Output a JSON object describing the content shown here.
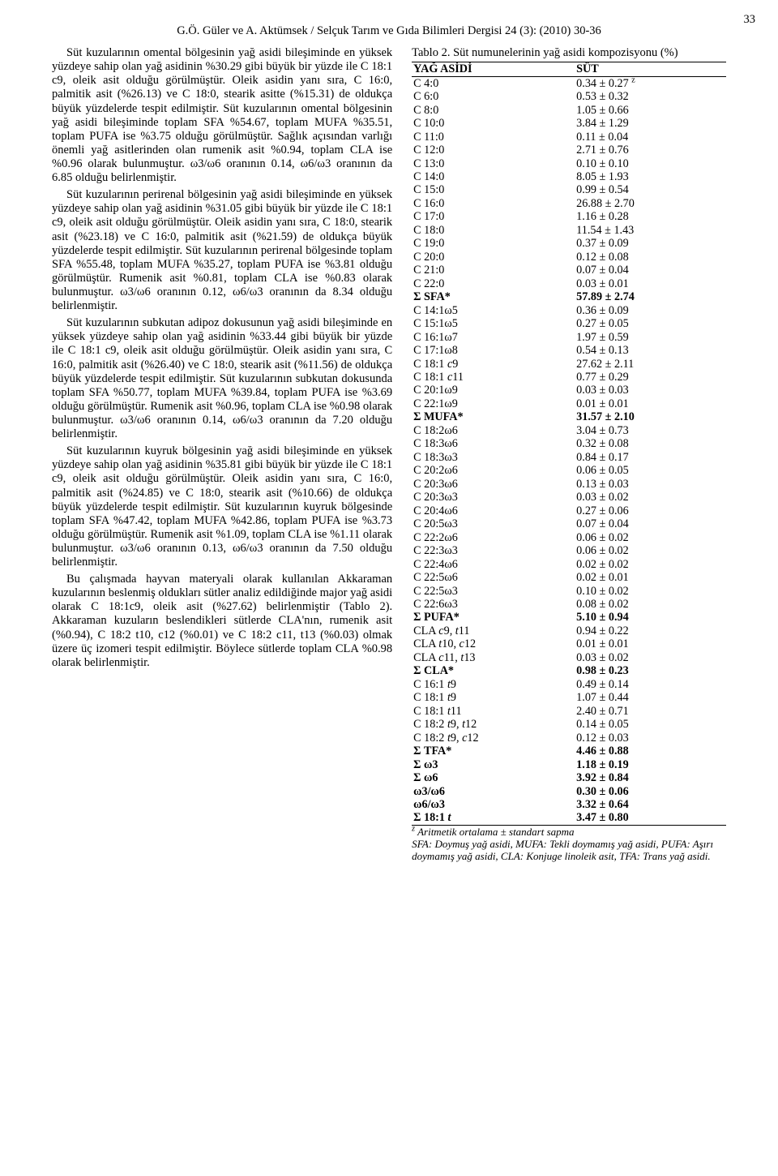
{
  "page_number": "33",
  "header": "G.Ö. Güler ve A. Aktümsek / Selçuk Tarım ve Gıda Bilimleri Dergisi 24 (3): (2010) 30-36",
  "paragraphs": [
    "Süt kuzularının omental bölgesinin yağ asidi bileşiminde en yüksek yüzdeye sahip olan yağ asidinin %30.29 gibi büyük bir yüzde ile C 18:1 c9, oleik asit olduğu görülmüştür. Oleik asidin yanı sıra, C 16:0, palmitik asit (%26.13) ve C 18:0, stearik asitte (%15.31) de oldukça büyük yüzdelerde tespit edilmiştir. Süt kuzularının omental bölgesinin yağ asidi bileşiminde toplam SFA %54.67, toplam MUFA %35.51, toplam PUFA ise %3.75 olduğu görülmüştür. Sağlık açısından varlığı önemli yağ asitlerinden olan rumenik asit %0.94, toplam CLA ise %0.96 olarak bulunmuştur. ω3/ω6 oranının 0.14, ω6/ω3 oranının da 6.85 olduğu belirlenmiştir.",
    "Süt kuzularının perirenal bölgesinin yağ asidi bileşiminde en yüksek yüzdeye sahip olan yağ asidinin %31.05 gibi büyük bir yüzde ile C 18:1 c9, oleik asit olduğu görülmüştür. Oleik asidin yanı sıra, C 18:0, stearik asit (%23.18) ve C 16:0, palmitik asit (%21.59) de oldukça büyük yüzdelerde tespit edilmiştir. Süt kuzularının perirenal bölgesinde toplam SFA %55.48, toplam MUFA %35.27, toplam PUFA ise %3.81 olduğu görülmüştür. Rumenik asit %0.81, toplam CLA ise %0.83 olarak bulunmuştur. ω3/ω6 oranının 0.12, ω6/ω3 oranının da 8.34 olduğu belirlenmiştir.",
    "Süt kuzularının subkutan adipoz dokusunun yağ asidi bileşiminde en yüksek yüzdeye sahip olan yağ asidinin %33.44 gibi büyük bir yüzde ile C 18:1 c9, oleik asit olduğu görülmüştür. Oleik asidin yanı sıra, C 16:0, palmitik asit (%26.40) ve C 18:0, stearik asit (%11.56) de oldukça büyük yüzdelerde tespit edilmiştir. Süt kuzularının subkutan dokusunda toplam SFA %50.77, toplam MUFA %39.84, toplam PUFA ise %3.69 olduğu görülmüştür. Rumenik asit %0.96, toplam CLA ise %0.98 olarak bulunmuştur. ω3/ω6 oranının 0.14, ω6/ω3 oranının da 7.20 olduğu belirlenmiştir.",
    "Süt kuzularının kuyruk bölgesinin yağ asidi bileşiminde en yüksek yüzdeye sahip olan yağ asidinin %35.81 gibi büyük bir yüzde ile C 18:1 c9, oleik asit olduğu görülmüştür. Oleik asidin yanı sıra, C 16:0, palmitik asit (%24.85) ve C 18:0, stearik asit (%10.66) de oldukça büyük yüzdelerde tespit edilmiştir. Süt kuzularının kuyruk bölgesinde toplam SFA %47.42, toplam MUFA %42.86, toplam PUFA ise %3.73 olduğu görülmüştür. Rumenik asit %1.09, toplam CLA ise %1.11 olarak bulunmuştur. ω3/ω6 oranının 0.13, ω6/ω3 oranının da 7.50 olduğu belirlenmiştir.",
    "Bu çalışmada hayvan materyali olarak kullanılan Akkaraman kuzularının beslenmiş oldukları sütler analiz edildiğinde major yağ asidi olarak C 18:1c9, oleik asit (%27.62) belirlenmiştir (Tablo 2). Akkaraman kuzuların beslendikleri sütlerde CLA'nın, rumenik asit (%0.94), C 18:2 t10, c12 (%0.01) ve C 18:2 c11, t13 (%0.03) olmak üzere üç izomeri tespit edilmiştir. Böylece sütlerde toplam CLA %0.98 olarak belirlenmiştir."
  ],
  "table": {
    "title": "Tablo 2. Süt numunelerinin yağ asidi kompozisyonu (%)",
    "header": {
      "col1": "YAĞ ASİDİ",
      "col2": "SÜT"
    },
    "first_row_note": "z",
    "rows": [
      {
        "l": "C 4:0",
        "v": "0.34 ± 0.27",
        "note": true
      },
      {
        "l": "C 6:0",
        "v": "0.53 ± 0.32"
      },
      {
        "l": "C 8:0",
        "v": "1.05 ± 0.66"
      },
      {
        "l": "C 10:0",
        "v": "3.84 ± 1.29"
      },
      {
        "l": "C 11:0",
        "v": "0.11 ± 0.04"
      },
      {
        "l": "C 12:0",
        "v": "2.71 ± 0.76"
      },
      {
        "l": "C 13:0",
        "v": "0.10 ± 0.10"
      },
      {
        "l": "C 14:0",
        "v": "8.05 ± 1.93"
      },
      {
        "l": "C 15:0",
        "v": "0.99 ± 0.54"
      },
      {
        "l": "C 16:0",
        "v": "26.88 ± 2.70"
      },
      {
        "l": "C 17:0",
        "v": "1.16 ± 0.28"
      },
      {
        "l": "C 18:0",
        "v": "11.54 ± 1.43"
      },
      {
        "l": "C 19:0",
        "v": "0.37 ± 0.09"
      },
      {
        "l": "C 20:0",
        "v": "0.12 ± 0.08"
      },
      {
        "l": "C 21:0",
        "v": "0.07 ± 0.04"
      },
      {
        "l": "C 22:0",
        "v": "0.03 ± 0.01"
      },
      {
        "l": "Σ SFA*",
        "v": "57.89 ± 2.74",
        "bold": true
      },
      {
        "l": "C 14:1ω5",
        "v": "0.36 ± 0.09"
      },
      {
        "l": "C 15:1ω5",
        "v": "0.27 ± 0.05"
      },
      {
        "l": "C 16:1ω7",
        "v": "1.97 ± 0.59"
      },
      {
        "l": "C 17:1ω8",
        "v": "0.54 ± 0.13"
      },
      {
        "l": "C 18:1 c9",
        "v": "27.62 ± 2.11",
        "ital_part": "c"
      },
      {
        "l": "C 18:1 c11",
        "v": "0.77 ± 0.29",
        "ital_part": "c"
      },
      {
        "l": "C 20:1ω9",
        "v": "0.03 ± 0.03"
      },
      {
        "l": "C 22:1ω9",
        "v": "0.01 ± 0.01"
      },
      {
        "l": "Σ MUFA*",
        "v": "31.57 ± 2.10",
        "bold": true
      },
      {
        "l": "C 18:2ω6",
        "v": "3.04 ± 0.73"
      },
      {
        "l": "C 18:3ω6",
        "v": "0.32 ± 0.08"
      },
      {
        "l": "C 18:3ω3",
        "v": "0.84 ± 0.17"
      },
      {
        "l": "C 20:2ω6",
        "v": "0.06 ± 0.05"
      },
      {
        "l": "C 20:3ω6",
        "v": "0.13 ± 0.03"
      },
      {
        "l": "C 20:3ω3",
        "v": "0.03 ± 0.02"
      },
      {
        "l": "C 20:4ω6",
        "v": "0.27 ± 0.06"
      },
      {
        "l": "C 20:5ω3",
        "v": "0.07 ± 0.04"
      },
      {
        "l": "C 22:2ω6",
        "v": "0.06 ± 0.02"
      },
      {
        "l": "C 22:3ω3",
        "v": "0.06 ± 0.02"
      },
      {
        "l": "C 22:4ω6",
        "v": "0.02 ± 0.02"
      },
      {
        "l": "C 22:5ω6",
        "v": "0.02 ± 0.01"
      },
      {
        "l": "C 22:5ω3",
        "v": "0.10 ± 0.02"
      },
      {
        "l": "C 22:6ω3",
        "v": "0.08 ± 0.02"
      },
      {
        "l": "Σ PUFA*",
        "v": "5.10 ± 0.94",
        "bold": true
      },
      {
        "l": "CLA c9, t11",
        "v": "0.94 ± 0.22",
        "ital_part": "ct"
      },
      {
        "l": "CLA t10, c12",
        "v": "0.01 ± 0.01",
        "ital_part": "ct"
      },
      {
        "l": "CLA c11, t13",
        "v": "0.03 ± 0.02",
        "ital_part": "ct"
      },
      {
        "l": "Σ CLA*",
        "v": "0.98 ± 0.23",
        "bold": true
      },
      {
        "l": "C 16:1 t9",
        "v": "0.49 ± 0.14",
        "ital_part": "t"
      },
      {
        "l": "C 18:1 t9",
        "v": "1.07 ± 0.44",
        "ital_part": "t"
      },
      {
        "l": "C 18:1 t11",
        "v": "2.40 ± 0.71",
        "ital_part": "t"
      },
      {
        "l": "C 18:2 t9, t12",
        "v": "0.14 ± 0.05",
        "ital_part": "t"
      },
      {
        "l": "C 18:2 t9, c12",
        "v": "0.12 ± 0.03",
        "ital_part": "ct"
      },
      {
        "l": "Σ TFA*",
        "v": "4.46 ± 0.88",
        "bold": true
      },
      {
        "l": "Σ ω3",
        "v": "1.18 ± 0.19",
        "bold": true
      },
      {
        "l": "Σ ω6",
        "v": "3.92 ± 0.84",
        "bold": true
      },
      {
        "l": "ω3/ω6",
        "v": "0.30 ± 0.06",
        "bold": true
      },
      {
        "l": "ω6/ω3",
        "v": "3.32 ± 0.64",
        "bold": true
      },
      {
        "l": "Σ 18:1 t",
        "v": "3.47 ± 0.80",
        "bold": true,
        "ital_part": "t"
      }
    ],
    "footnote_z": "Aritmetik ortalama ± standart sapma",
    "footnote_abbr": "SFA: Doymuş yağ asidi, MUFA: Tekli doymamış yağ asidi, PUFA: Aşırı doymamış yağ asidi,  CLA: Konjuge linoleik asit, TFA: Trans yağ asidi."
  }
}
